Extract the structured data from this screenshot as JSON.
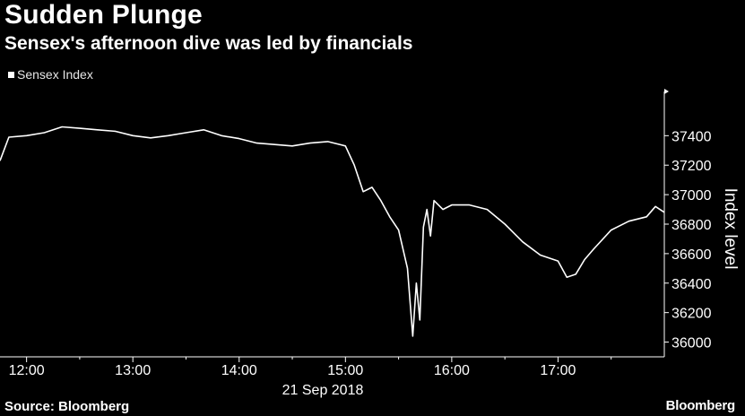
{
  "chart_data": {
    "type": "line",
    "title": "Sudden Plunge",
    "subtitle": "Sensex's afternoon dive was led by financials",
    "ylabel": "Index level",
    "xlabel": "21 Sep 2018",
    "legend": [
      "Sensex Index"
    ],
    "legend_position": "top-left",
    "grid": false,
    "ylim": [
      35900,
      37700
    ],
    "y_ticks": [
      "36000",
      "36200",
      "36400",
      "36600",
      "36800",
      "37000",
      "37200",
      "37400"
    ],
    "x_ticks": [
      "12:00",
      "13:00",
      "14:00",
      "15:00",
      "16:00",
      "17:00"
    ],
    "x_range_hours": [
      11.75,
      18.0
    ],
    "series": [
      {
        "name": "Sensex Index",
        "color": "#ffffff",
        "x": [
          "11:45",
          "11:50",
          "12:00",
          "12:10",
          "12:20",
          "12:30",
          "12:40",
          "12:50",
          "13:00",
          "13:10",
          "13:20",
          "13:30",
          "13:40",
          "13:50",
          "14:00",
          "14:10",
          "14:20",
          "14:30",
          "14:40",
          "14:50",
          "15:00",
          "15:05",
          "15:10",
          "15:15",
          "15:20",
          "15:25",
          "15:30",
          "15:35",
          "15:38",
          "15:40",
          "15:42",
          "15:44",
          "15:46",
          "15:48",
          "15:50",
          "15:55",
          "16:00",
          "16:10",
          "16:20",
          "16:30",
          "16:40",
          "16:50",
          "17:00",
          "17:05",
          "17:10",
          "17:15",
          "17:20",
          "17:30",
          "17:40",
          "17:50",
          "17:55",
          "18:00"
        ],
        "values": [
          37230,
          37390,
          37400,
          37420,
          37460,
          37450,
          37440,
          37430,
          37400,
          37385,
          37400,
          37420,
          37440,
          37400,
          37380,
          37350,
          37340,
          37330,
          37350,
          37360,
          37330,
          37200,
          37020,
          37050,
          36960,
          36850,
          36760,
          36500,
          36040,
          36400,
          36150,
          36780,
          36900,
          36720,
          36960,
          36900,
          36930,
          36930,
          36900,
          36800,
          36680,
          36590,
          36550,
          36440,
          36460,
          36560,
          36630,
          36760,
          36820,
          36850,
          36920,
          36880
        ]
      }
    ]
  },
  "legend_label": "Sensex Index",
  "source": "Source: Bloomberg",
  "brand": "Bloomberg",
  "date_label": "21 Sep 2018"
}
